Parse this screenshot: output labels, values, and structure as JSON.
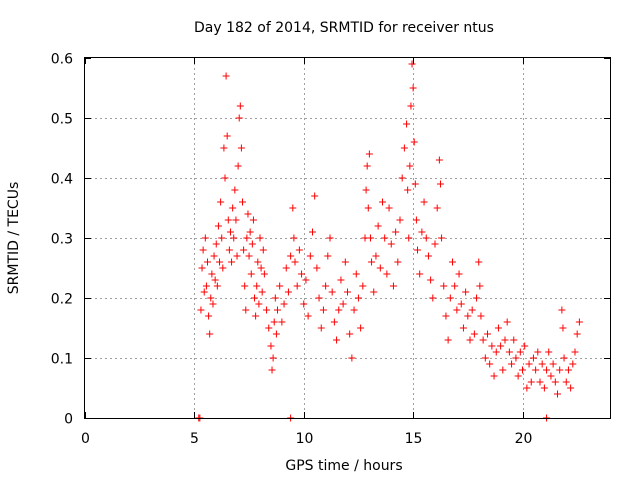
{
  "chart_data": {
    "type": "scatter",
    "title": "Day 182 of 2014, SRMTID for receiver ntus",
    "xlabel": "GPS time / hours",
    "ylabel": "SRMTID / TECUs",
    "xlim": [
      0,
      24
    ],
    "ylim": [
      0,
      0.6
    ],
    "x_ticks": [
      0,
      5,
      10,
      15,
      20
    ],
    "x_tick_labels": [
      "0",
      "5",
      "10",
      "15",
      "20"
    ],
    "y_ticks": [
      0,
      0.1,
      0.2,
      0.3,
      0.4,
      0.5,
      0.6
    ],
    "y_tick_labels": [
      "0",
      "0.1",
      "0.2",
      "0.3",
      "0.4",
      "0.5",
      "0.6"
    ],
    "grid": true,
    "marker": "+",
    "color": "#ff0000",
    "series": [
      {
        "name": "ntus",
        "points": [
          [
            5.2,
            0.0
          ],
          [
            5.25,
            0.0
          ],
          [
            9.4,
            0.0
          ],
          [
            21.1,
            0.0
          ],
          [
            5.3,
            0.18
          ],
          [
            5.35,
            0.25
          ],
          [
            5.4,
            0.28
          ],
          [
            5.45,
            0.21
          ],
          [
            5.5,
            0.3
          ],
          [
            5.55,
            0.22
          ],
          [
            5.6,
            0.26
          ],
          [
            5.65,
            0.17
          ],
          [
            5.7,
            0.14
          ],
          [
            5.75,
            0.2
          ],
          [
            5.8,
            0.24
          ],
          [
            5.85,
            0.19
          ],
          [
            5.9,
            0.27
          ],
          [
            5.95,
            0.23
          ],
          [
            6.0,
            0.29
          ],
          [
            6.05,
            0.22
          ],
          [
            6.1,
            0.32
          ],
          [
            6.15,
            0.26
          ],
          [
            6.2,
            0.36
          ],
          [
            6.25,
            0.3
          ],
          [
            6.3,
            0.25
          ],
          [
            6.35,
            0.45
          ],
          [
            6.4,
            0.4
          ],
          [
            6.45,
            0.57
          ],
          [
            6.5,
            0.47
          ],
          [
            6.55,
            0.33
          ],
          [
            6.6,
            0.28
          ],
          [
            6.65,
            0.31
          ],
          [
            6.7,
            0.26
          ],
          [
            6.75,
            0.35
          ],
          [
            6.8,
            0.3
          ],
          [
            6.85,
            0.38
          ],
          [
            6.9,
            0.33
          ],
          [
            6.95,
            0.27
          ],
          [
            7.0,
            0.42
          ],
          [
            7.05,
            0.5
          ],
          [
            7.1,
            0.52
          ],
          [
            7.15,
            0.45
          ],
          [
            7.2,
            0.36
          ],
          [
            7.25,
            0.28
          ],
          [
            7.3,
            0.22
          ],
          [
            7.35,
            0.18
          ],
          [
            7.4,
            0.3
          ],
          [
            7.45,
            0.34
          ],
          [
            7.5,
            0.27
          ],
          [
            7.55,
            0.31
          ],
          [
            7.6,
            0.24
          ],
          [
            7.65,
            0.29
          ],
          [
            7.7,
            0.33
          ],
          [
            7.75,
            0.2
          ],
          [
            7.8,
            0.17
          ],
          [
            7.85,
            0.22
          ],
          [
            7.9,
            0.26
          ],
          [
            7.95,
            0.19
          ],
          [
            8.0,
            0.3
          ],
          [
            8.05,
            0.25
          ],
          [
            8.1,
            0.21
          ],
          [
            8.15,
            0.28
          ],
          [
            8.2,
            0.24
          ],
          [
            8.3,
            0.18
          ],
          [
            8.4,
            0.15
          ],
          [
            8.5,
            0.12
          ],
          [
            8.55,
            0.08
          ],
          [
            8.6,
            0.1
          ],
          [
            8.65,
            0.16
          ],
          [
            8.7,
            0.2
          ],
          [
            8.75,
            0.14
          ],
          [
            8.8,
            0.18
          ],
          [
            8.9,
            0.22
          ],
          [
            9.0,
            0.16
          ],
          [
            9.1,
            0.19
          ],
          [
            9.2,
            0.25
          ],
          [
            9.3,
            0.21
          ],
          [
            9.4,
            0.27
          ],
          [
            9.5,
            0.35
          ],
          [
            9.55,
            0.3
          ],
          [
            9.6,
            0.26
          ],
          [
            9.7,
            0.22
          ],
          [
            9.8,
            0.28
          ],
          [
            9.9,
            0.24
          ],
          [
            10.0,
            0.19
          ],
          [
            10.1,
            0.23
          ],
          [
            10.2,
            0.17
          ],
          [
            10.3,
            0.27
          ],
          [
            10.4,
            0.31
          ],
          [
            10.5,
            0.37
          ],
          [
            10.6,
            0.25
          ],
          [
            10.7,
            0.2
          ],
          [
            10.8,
            0.15
          ],
          [
            10.9,
            0.18
          ],
          [
            11.0,
            0.22
          ],
          [
            11.1,
            0.27
          ],
          [
            11.2,
            0.3
          ],
          [
            11.3,
            0.21
          ],
          [
            11.4,
            0.16
          ],
          [
            11.5,
            0.13
          ],
          [
            11.6,
            0.18
          ],
          [
            11.7,
            0.23
          ],
          [
            11.8,
            0.19
          ],
          [
            11.9,
            0.26
          ],
          [
            12.0,
            0.21
          ],
          [
            12.1,
            0.14
          ],
          [
            12.2,
            0.1
          ],
          [
            12.3,
            0.18
          ],
          [
            12.4,
            0.24
          ],
          [
            12.5,
            0.2
          ],
          [
            12.6,
            0.15
          ],
          [
            12.7,
            0.22
          ],
          [
            12.8,
            0.3
          ],
          [
            12.85,
            0.38
          ],
          [
            12.9,
            0.42
          ],
          [
            12.95,
            0.35
          ],
          [
            13.0,
            0.44
          ],
          [
            13.05,
            0.3
          ],
          [
            13.1,
            0.26
          ],
          [
            13.2,
            0.21
          ],
          [
            13.3,
            0.27
          ],
          [
            13.4,
            0.32
          ],
          [
            13.5,
            0.25
          ],
          [
            13.6,
            0.36
          ],
          [
            13.7,
            0.3
          ],
          [
            13.8,
            0.24
          ],
          [
            13.9,
            0.35
          ],
          [
            14.0,
            0.29
          ],
          [
            14.1,
            0.22
          ],
          [
            14.2,
            0.31
          ],
          [
            14.3,
            0.26
          ],
          [
            14.4,
            0.33
          ],
          [
            14.5,
            0.4
          ],
          [
            14.6,
            0.45
          ],
          [
            14.7,
            0.49
          ],
          [
            14.75,
            0.38
          ],
          [
            14.8,
            0.3
          ],
          [
            14.85,
            0.42
          ],
          [
            14.9,
            0.52
          ],
          [
            14.95,
            0.59
          ],
          [
            15.0,
            0.55
          ],
          [
            15.05,
            0.46
          ],
          [
            15.1,
            0.39
          ],
          [
            15.15,
            0.33
          ],
          [
            15.2,
            0.28
          ],
          [
            15.3,
            0.24
          ],
          [
            15.4,
            0.31
          ],
          [
            15.5,
            0.36
          ],
          [
            15.6,
            0.3
          ],
          [
            15.7,
            0.27
          ],
          [
            15.8,
            0.23
          ],
          [
            15.9,
            0.2
          ],
          [
            16.0,
            0.29
          ],
          [
            16.1,
            0.35
          ],
          [
            16.2,
            0.43
          ],
          [
            16.25,
            0.39
          ],
          [
            16.3,
            0.3
          ],
          [
            16.4,
            0.22
          ],
          [
            16.5,
            0.17
          ],
          [
            16.6,
            0.13
          ],
          [
            16.7,
            0.2
          ],
          [
            16.8,
            0.26
          ],
          [
            16.9,
            0.22
          ],
          [
            17.0,
            0.18
          ],
          [
            17.1,
            0.24
          ],
          [
            17.2,
            0.19
          ],
          [
            17.3,
            0.15
          ],
          [
            17.4,
            0.21
          ],
          [
            17.5,
            0.17
          ],
          [
            17.6,
            0.13
          ],
          [
            17.7,
            0.18
          ],
          [
            17.8,
            0.14
          ],
          [
            17.9,
            0.2
          ],
          [
            18.0,
            0.26
          ],
          [
            18.05,
            0.22
          ],
          [
            18.1,
            0.17
          ],
          [
            18.2,
            0.13
          ],
          [
            18.3,
            0.1
          ],
          [
            18.4,
            0.14
          ],
          [
            18.5,
            0.09
          ],
          [
            18.6,
            0.12
          ],
          [
            18.7,
            0.07
          ],
          [
            18.8,
            0.11
          ],
          [
            18.9,
            0.15
          ],
          [
            19.0,
            0.12
          ],
          [
            19.1,
            0.08
          ],
          [
            19.2,
            0.13
          ],
          [
            19.3,
            0.16
          ],
          [
            19.4,
            0.11
          ],
          [
            19.5,
            0.09
          ],
          [
            19.6,
            0.13
          ],
          [
            19.7,
            0.1
          ],
          [
            19.8,
            0.07
          ],
          [
            19.9,
            0.11
          ],
          [
            20.0,
            0.08
          ],
          [
            20.1,
            0.12
          ],
          [
            20.2,
            0.05
          ],
          [
            20.3,
            0.09
          ],
          [
            20.4,
            0.06
          ],
          [
            20.5,
            0.1
          ],
          [
            20.6,
            0.08
          ],
          [
            20.7,
            0.11
          ],
          [
            20.8,
            0.06
          ],
          [
            20.9,
            0.09
          ],
          [
            21.0,
            0.05
          ],
          [
            21.1,
            0.08
          ],
          [
            21.2,
            0.11
          ],
          [
            21.3,
            0.07
          ],
          [
            21.4,
            0.09
          ],
          [
            21.5,
            0.06
          ],
          [
            21.6,
            0.04
          ],
          [
            21.7,
            0.08
          ],
          [
            21.8,
            0.18
          ],
          [
            21.85,
            0.15
          ],
          [
            21.9,
            0.1
          ],
          [
            22.0,
            0.06
          ],
          [
            22.1,
            0.08
          ],
          [
            22.2,
            0.05
          ],
          [
            22.3,
            0.09
          ],
          [
            22.4,
            0.11
          ],
          [
            22.5,
            0.14
          ],
          [
            22.6,
            0.16
          ]
        ]
      }
    ]
  }
}
